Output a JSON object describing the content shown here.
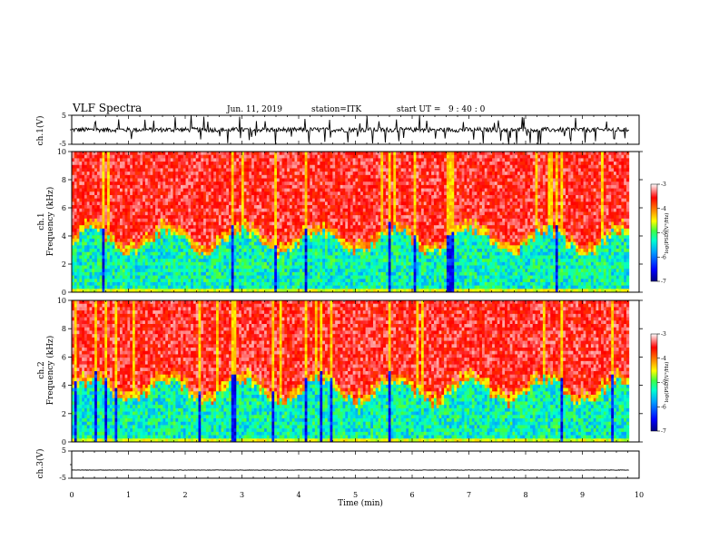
{
  "header": {
    "title": "VLF Spectra",
    "date": "Jun. 11, 2019",
    "station": "station=ITK",
    "start": "start UT =   9 : 40 : 0"
  },
  "chart_data": [
    {
      "type": "line",
      "name": "ch.1 waveform",
      "ylabel": "ch.1(V)",
      "ylim": [
        -5,
        5
      ],
      "yticks": [
        "5",
        "-5"
      ],
      "xlim": [
        0,
        10
      ],
      "description_values": {
        "baseline_V": 0,
        "typical_noise_V": 1,
        "spikes_max_V": 5
      }
    },
    {
      "type": "heatmap",
      "name": "ch.1 spectrogram",
      "ylabel": "Frequency (kHz)",
      "channel_label": "ch.1",
      "ylim": [
        0,
        10
      ],
      "yticks": [
        "0",
        "2",
        "4",
        "6",
        "8",
        "10"
      ],
      "xlim": [
        0,
        10
      ],
      "data_extent_min": 9.82,
      "colorbar": {
        "label": "log(PSD)(V²/Hz)",
        "range": [
          -7,
          -3
        ],
        "ticks": [
          "-3",
          "-4",
          "-5",
          "-6",
          "-7"
        ]
      }
    },
    {
      "type": "heatmap",
      "name": "ch.2 spectrogram",
      "ylabel": "Frequency (kHz)",
      "channel_label": "ch.2",
      "ylim": [
        0,
        10
      ],
      "yticks": [
        "0",
        "2",
        "4",
        "6",
        "8",
        "10"
      ],
      "xlim": [
        0,
        10
      ],
      "data_extent_min": 9.82,
      "colorbar": {
        "label": "log(PSD)(V²/Hz)",
        "range": [
          -7,
          -3
        ],
        "ticks": [
          "-3",
          "-4",
          "-5",
          "-6",
          "-7"
        ]
      }
    },
    {
      "type": "line",
      "name": "ch.3 waveform",
      "ylabel": "ch.3(V)",
      "ylim": [
        -5,
        5
      ],
      "yticks": [
        "5",
        "-5"
      ],
      "xlim": [
        0,
        10
      ],
      "description_values": {
        "constant_V": -2
      }
    }
  ],
  "x_axis": {
    "label": "Time (min)",
    "ticks": [
      "0",
      "1",
      "2",
      "3",
      "4",
      "5",
      "6",
      "7",
      "8",
      "9",
      "10"
    ]
  },
  "colors": {
    "colormap": [
      "#000080",
      "#0000ff",
      "#00a0ff",
      "#00ffd0",
      "#40ff40",
      "#ffff00",
      "#ff8000",
      "#ff0000",
      "#ffffff"
    ],
    "trace": "#000000"
  }
}
